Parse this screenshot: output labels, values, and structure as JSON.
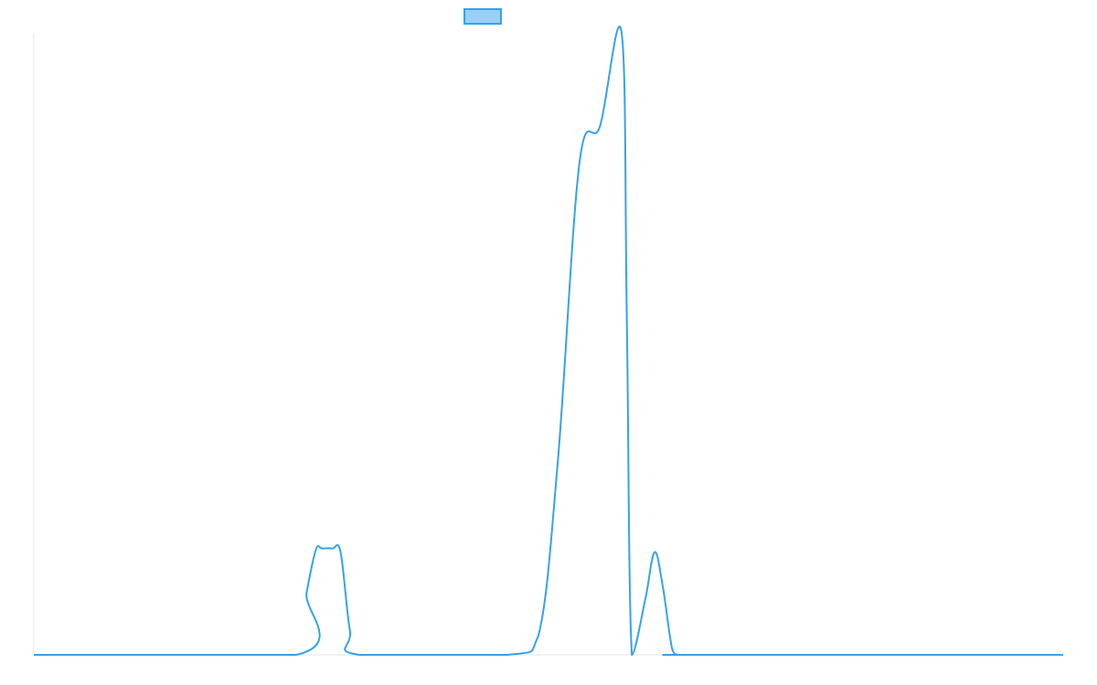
{
  "chart_data": {
    "type": "line",
    "title": "",
    "xlabel": "",
    "ylabel": "",
    "xlim": [
      0,
      100
    ],
    "ylim": [
      0,
      100
    ],
    "grid": false,
    "legend": "top-center",
    "series": [
      {
        "color": "#36a2eb",
        "fill": "#9ad0f5",
        "x": [
          0,
          25.5,
          26.5,
          27.4,
          28,
          29,
          29.8,
          30.7,
          31.6,
          46,
          49,
          50.9,
          53,
          55,
          57.1,
          57.6,
          58.1,
          59.4,
          60.3,
          61.1,
          62,
          62.6,
          64.5,
          100
        ],
        "y": [
          0,
          0,
          10,
          16.9,
          17.1,
          17.1,
          16.5,
          4,
          0,
          0,
          3,
          31,
          79,
          85,
          100,
          55,
          0,
          8.9,
          16.5,
          11,
          1,
          0,
          0,
          0
        ]
      }
    ]
  }
}
